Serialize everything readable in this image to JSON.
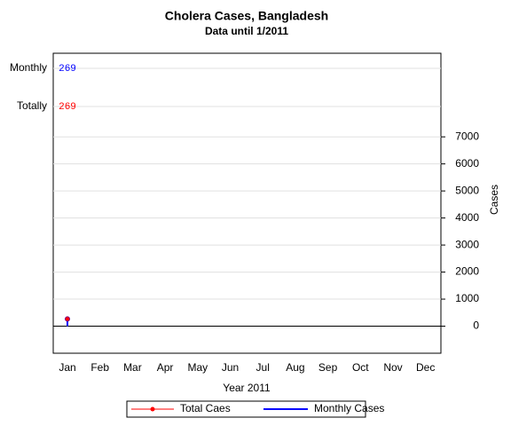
{
  "chart_data": {
    "type": "line",
    "title": "Cholera Cases, Bangladesh",
    "subtitle": "Data until 1/2011",
    "x_label": "Year 2011",
    "y_label": "Cases",
    "categories": [
      "Jan",
      "Feb",
      "Mar",
      "Apr",
      "May",
      "Jun",
      "Jul",
      "Aug",
      "Sep",
      "Oct",
      "Nov",
      "Dec"
    ],
    "series": [
      {
        "name": "Total Caes",
        "row_label": "Totally",
        "color": "#ff0000",
        "style": "line",
        "values": [
          269,
          null,
          null,
          null,
          null,
          null,
          null,
          null,
          null,
          null,
          null,
          null
        ]
      },
      {
        "name": "Monthly Cases",
        "row_label": "Monthly",
        "color": "#0000ff",
        "style": "needle",
        "values": [
          269,
          null,
          null,
          null,
          null,
          null,
          null,
          null,
          null,
          null,
          null,
          null
        ]
      }
    ],
    "ylim": [
      -1000,
      7400
    ],
    "yticks": [
      0,
      1000,
      2000,
      3000,
      4000,
      5000,
      6000,
      7000
    ],
    "grid": true,
    "legend": "bottom"
  }
}
